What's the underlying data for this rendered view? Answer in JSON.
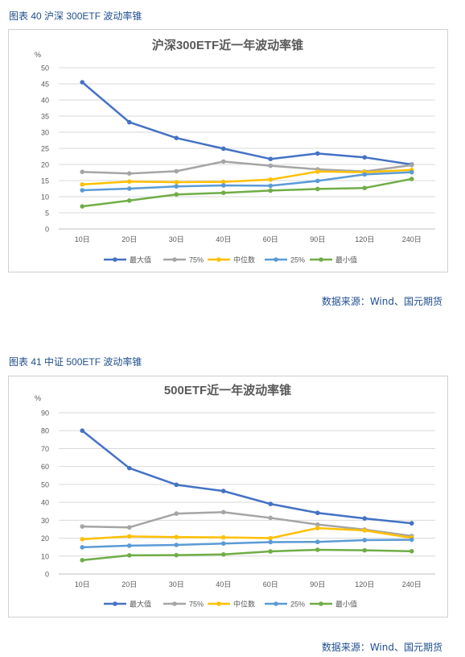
{
  "colors": {
    "caption": "#1f4e8c",
    "series": [
      "#4472c4",
      "#a5a5a5",
      "#ffc000",
      "#5b9bd5",
      "#70ad47"
    ]
  },
  "figures": [
    {
      "caption": "图表 40  沪深 300ETF 波动率锥",
      "source": "数据来源：Wind、国元期货"
    },
    {
      "caption": "图表 41  中证 500ETF 波动率锥",
      "source": "数据来源：Wind、国元期货"
    }
  ],
  "chart_data": [
    {
      "type": "line",
      "title": "沪深300ETF近一年波动率锥",
      "ylabel": "%",
      "categories": [
        "10日",
        "20日",
        "30日",
        "40日",
        "60日",
        "90日",
        "120日",
        "240日"
      ],
      "ylim": [
        0,
        50
      ],
      "yticks": [
        0,
        5,
        10,
        15,
        20,
        25,
        30,
        35,
        40,
        45,
        50
      ],
      "grid": true,
      "legend": "bottom",
      "series": [
        {
          "name": "最大值",
          "values": [
            45.5,
            33.1,
            28.2,
            24.9,
            21.7,
            23.4,
            22.2,
            20.0
          ]
        },
        {
          "name": "75%",
          "values": [
            17.7,
            17.2,
            17.9,
            20.9,
            19.6,
            18.5,
            17.8,
            19.8
          ]
        },
        {
          "name": "中位数",
          "values": [
            13.8,
            14.7,
            14.5,
            14.6,
            15.3,
            17.8,
            17.6,
            18.3
          ]
        },
        {
          "name": "25%",
          "values": [
            12.0,
            12.5,
            13.2,
            13.5,
            13.4,
            14.9,
            16.9,
            17.6
          ]
        },
        {
          "name": "最小值",
          "values": [
            7.0,
            8.8,
            10.7,
            11.2,
            11.9,
            12.4,
            12.7,
            15.5
          ]
        }
      ]
    },
    {
      "type": "line",
      "title": "500ETF近一年波动率锥",
      "ylabel": "%",
      "categories": [
        "10日",
        "20日",
        "30日",
        "40日",
        "60日",
        "90日",
        "120日",
        "240日"
      ],
      "ylim": [
        0,
        90
      ],
      "yticks": [
        0,
        10,
        20,
        30,
        40,
        50,
        60,
        70,
        80,
        90
      ],
      "grid": true,
      "legend": "bottom",
      "series": [
        {
          "name": "最大值",
          "values": [
            80.0,
            59.1,
            49.8,
            46.3,
            39.1,
            34.1,
            31.0,
            28.3
          ]
        },
        {
          "name": "75%",
          "values": [
            26.5,
            26.0,
            33.7,
            34.5,
            31.3,
            27.6,
            24.8,
            21.2
          ]
        },
        {
          "name": "中位数",
          "values": [
            19.4,
            21.0,
            20.6,
            20.4,
            20.0,
            25.6,
            24.3,
            20.2
          ]
        },
        {
          "name": "25%",
          "values": [
            14.9,
            15.8,
            16.2,
            17.0,
            17.8,
            17.9,
            18.9,
            19.1
          ]
        },
        {
          "name": "最小值",
          "values": [
            7.7,
            10.4,
            10.5,
            10.9,
            12.6,
            13.5,
            13.2,
            12.7
          ]
        }
      ]
    }
  ]
}
